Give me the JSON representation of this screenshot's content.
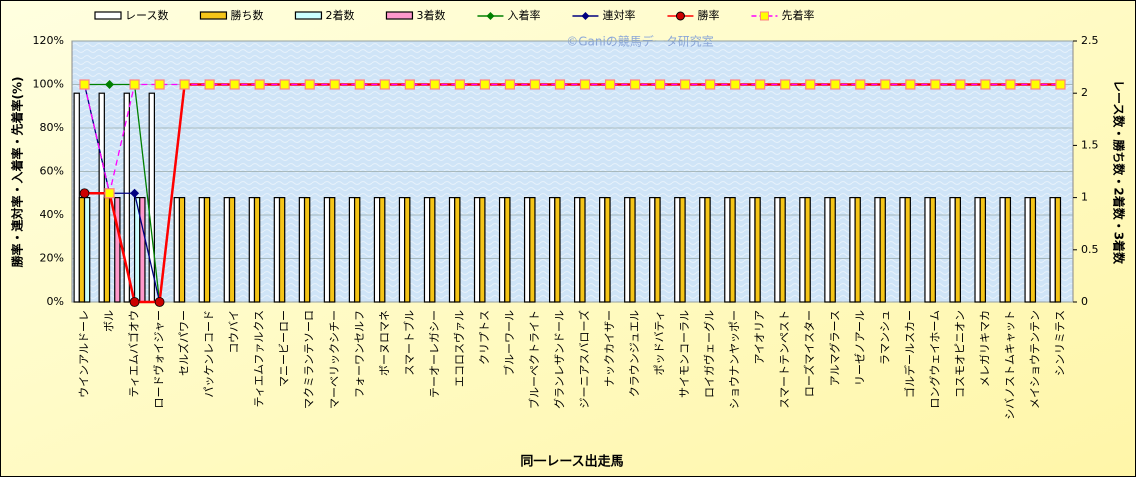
{
  "chart_data": {
    "type": "bar_line",
    "watermark": "©Ganiの競馬データ研究室",
    "x_label": "同一レース出走馬",
    "y_label": "勝率・連対率・入着率・先着率(%)",
    "y2_label": "レース数・勝ち数・2着数・3着数",
    "categories": [
      "ウインアルドーレ",
      "ボル",
      "ティエムバゴオウ",
      "ロードヴォイジャー",
      "セルズパワー",
      "パッケンレコード",
      "コウバイ",
      "ティエムファルクス",
      "マニービーロー",
      "マクミランテソーロ",
      "マーベリックシチー",
      "フォーワンセルフ",
      "ボーヌロマネ",
      "スマートブル",
      "テーオーレガシー",
      "エコロスヴァル",
      "クリプトス",
      "ブルーワール",
      "ブルーペクトライト",
      "グランレザンドール",
      "ジーニアスバローズ",
      "ナックカイザー",
      "クラウンジュエル",
      "ポッドバティ",
      "サイモンコーラル",
      "ロイガヴェーグル",
      "ショウナンヤッポー",
      "アイオリア",
      "スマートテンペスト",
      "ローズマイスター",
      "アルマグラース",
      "リーゼノアール",
      "ラマンシュ",
      "ゴルデールスカー",
      "ロングウェイホーム",
      "コスモオピニオン",
      "メレガリキマカ",
      "シバノストムキャット",
      "メイショウテンテン",
      "シンリミテス"
    ],
    "ylim": [
      0,
      120
    ],
    "yticks": [
      {
        "value": 0,
        "label": "0%"
      },
      {
        "value": 20,
        "label": "20%"
      },
      {
        "value": 40,
        "label": "40%"
      },
      {
        "value": 60,
        "label": "60%"
      },
      {
        "value": 80,
        "label": "80%"
      },
      {
        "value": 100,
        "label": "100%"
      },
      {
        "value": 120,
        "label": "120%"
      }
    ],
    "y2lim": [
      0,
      2.5
    ],
    "y2ticks": [
      0,
      0.5,
      1,
      1.5,
      2,
      2.5
    ],
    "grid": true,
    "series": [
      {
        "name": "レース数",
        "kind": "bar",
        "axis": "y2",
        "color": "#ffffff",
        "values": [
          2,
          2,
          2,
          2,
          1,
          1,
          1,
          1,
          1,
          1,
          1,
          1,
          1,
          1,
          1,
          1,
          1,
          1,
          1,
          1,
          1,
          1,
          1,
          1,
          1,
          1,
          1,
          1,
          1,
          1,
          1,
          1,
          1,
          1,
          1,
          1,
          1,
          1,
          1,
          1
        ]
      },
      {
        "name": "勝ち数",
        "kind": "bar",
        "axis": "y2",
        "color": "#f5c518",
        "values": [
          1,
          1,
          0,
          0,
          1,
          1,
          1,
          1,
          1,
          1,
          1,
          1,
          1,
          1,
          1,
          1,
          1,
          1,
          1,
          1,
          1,
          1,
          1,
          1,
          1,
          1,
          1,
          1,
          1,
          1,
          1,
          1,
          1,
          1,
          1,
          1,
          1,
          1,
          1,
          1
        ]
      },
      {
        "name": "2着数",
        "kind": "bar",
        "axis": "y2",
        "color": "#ccffff",
        "values": [
          1,
          0,
          1,
          0,
          0,
          0,
          0,
          0,
          0,
          0,
          0,
          0,
          0,
          0,
          0,
          0,
          0,
          0,
          0,
          0,
          0,
          0,
          0,
          0,
          0,
          0,
          0,
          0,
          0,
          0,
          0,
          0,
          0,
          0,
          0,
          0,
          0,
          0,
          0,
          0
        ]
      },
      {
        "name": "3着数",
        "kind": "bar",
        "axis": "y2",
        "color": "#ff99cc",
        "values": [
          0,
          1,
          1,
          0,
          0,
          0,
          0,
          0,
          0,
          0,
          0,
          0,
          0,
          0,
          0,
          0,
          0,
          0,
          0,
          0,
          0,
          0,
          0,
          0,
          0,
          0,
          0,
          0,
          0,
          0,
          0,
          0,
          0,
          0,
          0,
          0,
          0,
          0,
          0,
          0
        ]
      },
      {
        "name": "入着率",
        "kind": "line",
        "axis": "y",
        "color": "#008000",
        "marker": "diamond",
        "values": [
          100,
          100,
          100,
          0,
          100,
          100,
          100,
          100,
          100,
          100,
          100,
          100,
          100,
          100,
          100,
          100,
          100,
          100,
          100,
          100,
          100,
          100,
          100,
          100,
          100,
          100,
          100,
          100,
          100,
          100,
          100,
          100,
          100,
          100,
          100,
          100,
          100,
          100,
          100,
          100
        ]
      },
      {
        "name": "連対率",
        "kind": "line",
        "axis": "y",
        "color": "#000080",
        "marker": "diamond",
        "values": [
          100,
          50,
          50,
          0,
          100,
          100,
          100,
          100,
          100,
          100,
          100,
          100,
          100,
          100,
          100,
          100,
          100,
          100,
          100,
          100,
          100,
          100,
          100,
          100,
          100,
          100,
          100,
          100,
          100,
          100,
          100,
          100,
          100,
          100,
          100,
          100,
          100,
          100,
          100,
          100
        ]
      },
      {
        "name": "勝率",
        "kind": "line",
        "axis": "y",
        "color": "#ff0000",
        "marker": "circle",
        "values": [
          50,
          50,
          0,
          0,
          100,
          100,
          100,
          100,
          100,
          100,
          100,
          100,
          100,
          100,
          100,
          100,
          100,
          100,
          100,
          100,
          100,
          100,
          100,
          100,
          100,
          100,
          100,
          100,
          100,
          100,
          100,
          100,
          100,
          100,
          100,
          100,
          100,
          100,
          100,
          100
        ]
      },
      {
        "name": "先着率",
        "kind": "line",
        "axis": "y",
        "color": "#ff00ff",
        "marker": "square",
        "dash": true,
        "values": [
          100,
          50,
          100,
          100,
          100,
          100,
          100,
          100,
          100,
          100,
          100,
          100,
          100,
          100,
          100,
          100,
          100,
          100,
          100,
          100,
          100,
          100,
          100,
          100,
          100,
          100,
          100,
          100,
          100,
          100,
          100,
          100,
          100,
          100,
          100,
          100,
          100,
          100,
          100,
          100
        ]
      }
    ]
  }
}
